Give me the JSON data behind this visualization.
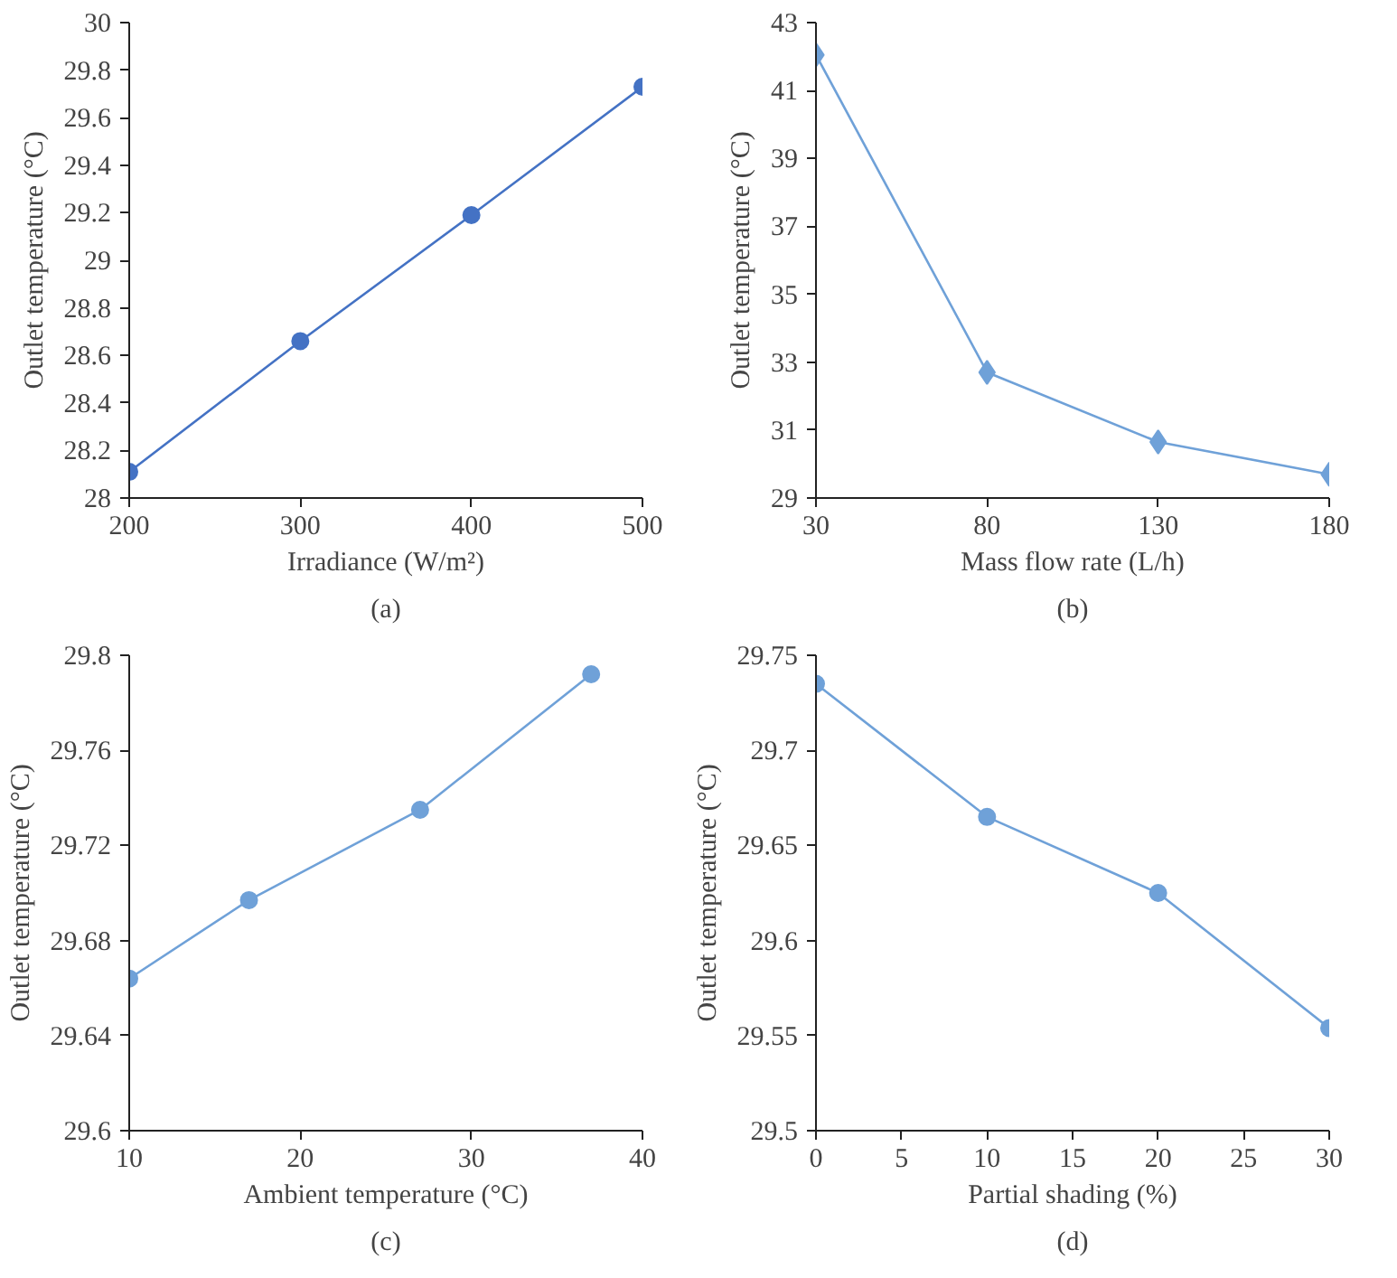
{
  "chart_data": [
    {
      "type": "line",
      "xlabel": "Irradiance (W/m²)",
      "ylabel": "Outlet temperature (°C)",
      "annotations": [
        "(a)"
      ],
      "x": [
        200,
        300,
        400,
        500
      ],
      "series": [
        {
          "color": "#4472c4",
          "values": [
            28.11,
            28.66,
            29.19,
            29.73
          ]
        }
      ],
      "xlim": [
        200,
        500
      ],
      "xticks": [
        200,
        300,
        400,
        500
      ],
      "ylim": [
        28,
        30
      ],
      "yticks": [
        28,
        28.2,
        28.4,
        28.6,
        28.8,
        29,
        29.2,
        29.4,
        29.6,
        29.8,
        30
      ],
      "marker": "circle",
      "grid": false
    },
    {
      "type": "line",
      "xlabel": "Mass flow rate (L/h)",
      "ylabel": "Outlet temperature (°C)",
      "annotations": [
        "(b)"
      ],
      "x": [
        30,
        80,
        130,
        180
      ],
      "series": [
        {
          "color": "#6fa1d8",
          "values": [
            42.05,
            32.7,
            30.65,
            29.7
          ]
        }
      ],
      "xlim": [
        30,
        180
      ],
      "xticks": [
        30,
        80,
        130,
        180
      ],
      "ylim": [
        29,
        43
      ],
      "yticks": [
        29,
        31,
        33,
        35,
        37,
        39,
        41,
        43
      ],
      "marker": "diamond",
      "grid": false
    },
    {
      "type": "line",
      "xlabel": "Ambient temperature (°C)",
      "ylabel": "Outlet temperature (°C)",
      "annotations": [
        "(c)"
      ],
      "x": [
        10,
        17,
        27,
        37
      ],
      "series": [
        {
          "color": "#6fa1d8",
          "values": [
            29.664,
            29.697,
            29.735,
            29.792
          ]
        }
      ],
      "xlim": [
        10,
        40
      ],
      "xticks": [
        10,
        20,
        30,
        40
      ],
      "ylim": [
        29.6,
        29.8
      ],
      "yticks": [
        29.6,
        29.64,
        29.68,
        29.72,
        29.76,
        29.8
      ],
      "marker": "circle",
      "grid": false
    },
    {
      "type": "line",
      "xlabel": "Partial shading (%)",
      "ylabel": "Outlet temperature (°C)",
      "annotations": [
        "(d)"
      ],
      "x": [
        0,
        10,
        20,
        30
      ],
      "series": [
        {
          "color": "#6fa1d8",
          "values": [
            29.735,
            29.665,
            29.625,
            29.554
          ]
        }
      ],
      "xlim": [
        0,
        30
      ],
      "xticks": [
        0,
        5,
        10,
        15,
        20,
        25,
        30
      ],
      "ylim": [
        29.5,
        29.75
      ],
      "yticks": [
        29.5,
        29.55,
        29.6,
        29.65,
        29.7,
        29.75
      ],
      "marker": "circle",
      "grid": false
    }
  ]
}
